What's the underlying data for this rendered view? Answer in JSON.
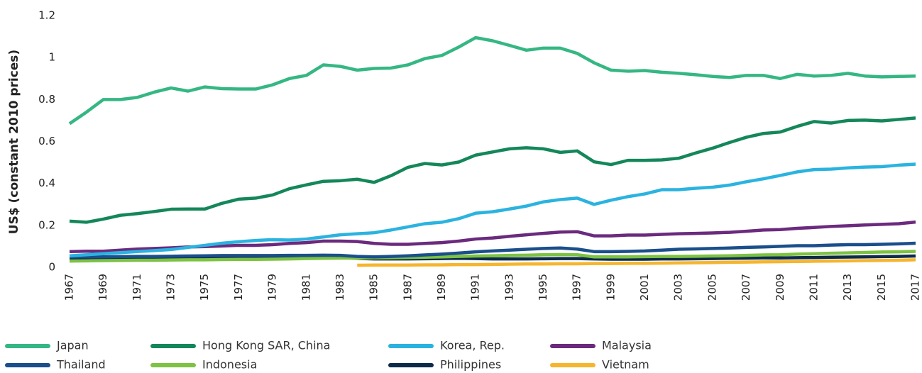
{
  "chart_data": {
    "type": "line",
    "y_label": "US$ (constant 2010 prices)",
    "x": [
      1967,
      1968,
      1969,
      1970,
      1971,
      1972,
      1973,
      1974,
      1975,
      1976,
      1977,
      1978,
      1979,
      1980,
      1981,
      1982,
      1983,
      1984,
      1985,
      1986,
      1987,
      1988,
      1989,
      1990,
      1991,
      1992,
      1993,
      1994,
      1995,
      1996,
      1997,
      1998,
      1999,
      2000,
      2001,
      2002,
      2003,
      2004,
      2005,
      2006,
      2007,
      2008,
      2009,
      2010,
      2011,
      2012,
      2013,
      2014,
      2015,
      2016,
      2017
    ],
    "xlim": [
      1967,
      2017
    ],
    "xticks": [
      1967,
      1969,
      1971,
      1973,
      1975,
      1977,
      1979,
      1981,
      1983,
      1985,
      1987,
      1989,
      1991,
      1993,
      1995,
      1997,
      1999,
      2001,
      2003,
      2005,
      2007,
      2009,
      2011,
      2013,
      2015,
      2017
    ],
    "ylim": [
      0,
      1.2
    ],
    "yticks": [
      0,
      0.2,
      0.4,
      0.6,
      0.8,
      1,
      1.2
    ],
    "series": [
      {
        "name": "Japan",
        "color": "#35b783",
        "values": [
          0.685,
          0.74,
          0.8,
          0.8,
          0.81,
          0.835,
          0.855,
          0.84,
          0.86,
          0.852,
          0.85,
          0.85,
          0.87,
          0.9,
          0.915,
          0.965,
          0.958,
          0.94,
          0.948,
          0.95,
          0.965,
          0.995,
          1.01,
          1.05,
          1.095,
          1.08,
          1.058,
          1.035,
          1.045,
          1.045,
          1.02,
          0.975,
          0.94,
          0.935,
          0.938,
          0.93,
          0.925,
          0.918,
          0.91,
          0.905,
          0.915,
          0.915,
          0.9,
          0.92,
          0.912,
          0.915,
          0.925,
          0.912,
          0.908,
          0.91,
          0.912
        ]
      },
      {
        "name": "Hong Kong SAR, China",
        "color": "#14875a",
        "values": [
          0.22,
          0.215,
          0.23,
          0.248,
          0.256,
          0.266,
          0.277,
          0.278,
          0.278,
          0.305,
          0.325,
          0.33,
          0.345,
          0.375,
          0.393,
          0.41,
          0.413,
          0.42,
          0.405,
          0.437,
          0.477,
          0.495,
          0.488,
          0.502,
          0.535,
          0.55,
          0.565,
          0.57,
          0.565,
          0.548,
          0.555,
          0.503,
          0.49,
          0.51,
          0.51,
          0.512,
          0.52,
          0.545,
          0.568,
          0.595,
          0.62,
          0.638,
          0.645,
          0.672,
          0.695,
          0.688,
          0.7,
          0.702,
          0.698,
          0.705,
          0.712
        ]
      },
      {
        "name": "Korea, Rep.",
        "color": "#2bb3e0",
        "values": [
          0.055,
          0.06,
          0.065,
          0.07,
          0.075,
          0.08,
          0.085,
          0.095,
          0.105,
          0.115,
          0.122,
          0.128,
          0.132,
          0.13,
          0.135,
          0.145,
          0.155,
          0.16,
          0.165,
          0.178,
          0.193,
          0.208,
          0.215,
          0.232,
          0.258,
          0.265,
          0.278,
          0.292,
          0.312,
          0.323,
          0.33,
          0.3,
          0.32,
          0.337,
          0.35,
          0.37,
          0.37,
          0.377,
          0.382,
          0.392,
          0.408,
          0.422,
          0.438,
          0.455,
          0.466,
          0.468,
          0.474,
          0.478,
          0.48,
          0.487,
          0.492
        ]
      },
      {
        "name": "Malaysia",
        "color": "#6b2a7e",
        "values": [
          0.075,
          0.077,
          0.077,
          0.082,
          0.087,
          0.09,
          0.093,
          0.097,
          0.099,
          0.102,
          0.105,
          0.105,
          0.108,
          0.114,
          0.118,
          0.125,
          0.125,
          0.123,
          0.114,
          0.11,
          0.11,
          0.114,
          0.118,
          0.125,
          0.135,
          0.14,
          0.148,
          0.155,
          0.162,
          0.168,
          0.17,
          0.15,
          0.15,
          0.154,
          0.154,
          0.157,
          0.16,
          0.162,
          0.164,
          0.167,
          0.172,
          0.178,
          0.18,
          0.186,
          0.19,
          0.195,
          0.198,
          0.202,
          0.205,
          0.208,
          0.216
        ]
      },
      {
        "name": "Thailand",
        "color": "#1a4f8b",
        "values": [
          0.05,
          0.05,
          0.05,
          0.051,
          0.052,
          0.052,
          0.053,
          0.054,
          0.055,
          0.056,
          0.056,
          0.056,
          0.056,
          0.057,
          0.057,
          0.058,
          0.057,
          0.052,
          0.05,
          0.052,
          0.055,
          0.059,
          0.063,
          0.068,
          0.074,
          0.078,
          0.082,
          0.086,
          0.09,
          0.092,
          0.087,
          0.075,
          0.075,
          0.076,
          0.078,
          0.082,
          0.086,
          0.088,
          0.09,
          0.092,
          0.095,
          0.097,
          0.1,
          0.103,
          0.103,
          0.106,
          0.108,
          0.108,
          0.11,
          0.112,
          0.115
        ]
      },
      {
        "name": "Indonesia",
        "color": "#7dc242",
        "values": [
          0.03,
          0.031,
          0.032,
          0.033,
          0.034,
          0.034,
          0.035,
          0.036,
          0.036,
          0.037,
          0.038,
          0.038,
          0.039,
          0.04,
          0.042,
          0.043,
          0.044,
          0.044,
          0.045,
          0.046,
          0.047,
          0.048,
          0.05,
          0.052,
          0.054,
          0.055,
          0.057,
          0.058,
          0.06,
          0.061,
          0.06,
          0.05,
          0.05,
          0.05,
          0.051,
          0.052,
          0.052,
          0.053,
          0.054,
          0.055,
          0.057,
          0.059,
          0.06,
          0.063,
          0.065,
          0.067,
          0.069,
          0.071,
          0.073,
          0.074,
          0.076
        ]
      },
      {
        "name": "Philippines",
        "color": "#0d2a4a",
        "values": [
          0.04,
          0.041,
          0.042,
          0.043,
          0.044,
          0.044,
          0.045,
          0.046,
          0.046,
          0.047,
          0.047,
          0.047,
          0.047,
          0.048,
          0.048,
          0.048,
          0.047,
          0.043,
          0.04,
          0.04,
          0.04,
          0.041,
          0.042,
          0.043,
          0.042,
          0.04,
          0.04,
          0.04,
          0.041,
          0.042,
          0.042,
          0.04,
          0.039,
          0.039,
          0.039,
          0.04,
          0.04,
          0.041,
          0.042,
          0.043,
          0.044,
          0.045,
          0.045,
          0.046,
          0.047,
          0.048,
          0.049,
          0.05,
          0.051,
          0.052,
          0.054
        ]
      },
      {
        "name": "Vietnam",
        "color": "#f5b52e",
        "values": [
          null,
          null,
          null,
          null,
          null,
          null,
          null,
          null,
          null,
          null,
          null,
          null,
          null,
          null,
          null,
          null,
          null,
          0.01,
          0.011,
          0.011,
          0.011,
          0.012,
          0.012,
          0.013,
          0.013,
          0.014,
          0.015,
          0.016,
          0.016,
          0.017,
          0.017,
          0.018,
          0.018,
          0.019,
          0.019,
          0.02,
          0.021,
          0.022,
          0.023,
          0.024,
          0.025,
          0.026,
          0.027,
          0.028,
          0.029,
          0.03,
          0.031,
          0.032,
          0.033,
          0.034,
          0.036
        ]
      }
    ]
  }
}
